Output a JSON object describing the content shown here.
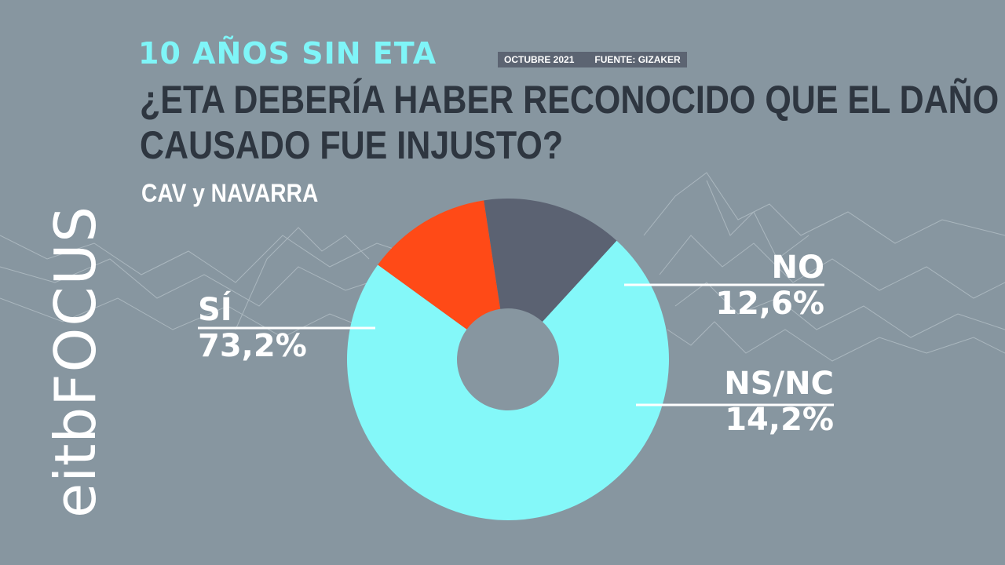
{
  "header": {
    "kicker": "10 AÑOS SIN ETA",
    "date": "OCTUBRE 2021",
    "source": "FUENTE: GIZAKER",
    "title_line1": "¿ETA DEBERÍA HABER RECONOCIDO QUE EL DAÑO",
    "title_line2": "CAUSADO FUE INJUSTO?",
    "region": "CAV y NAVARRA"
  },
  "brand": {
    "part1": "eitb",
    "part2": "FOCUS"
  },
  "chart_data": {
    "type": "pie",
    "style": "donut",
    "slices": [
      {
        "label": "NO",
        "value": 12.6,
        "display": "12,6%",
        "color": "#ff4a17"
      },
      {
        "label": "NS/NC",
        "value": 14.2,
        "display": "14,2%",
        "color": "#5b6272"
      },
      {
        "label": "SÍ",
        "value": 73.2,
        "display": "73,2%",
        "color": "#84f8f9"
      }
    ]
  },
  "colors": {
    "background": "#8796a0",
    "accent": "#7ff5f8",
    "title": "#2e3640"
  }
}
